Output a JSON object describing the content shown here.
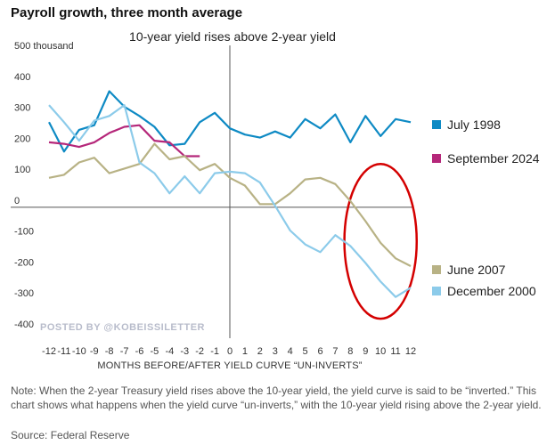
{
  "chart_data": {
    "type": "line",
    "title": "Payroll growth, three month average",
    "subtitle": "10-year yield rises above 2-year yield",
    "ylabel": "500 thousand",
    "xlabel": "MONTHS BEFORE/AFTER YIELD CURVE “UN-INVERTS”",
    "ylim": [
      -400,
      500
    ],
    "xlim": [
      -12,
      12
    ],
    "yticks": [
      500,
      400,
      300,
      200,
      100,
      0,
      -100,
      -200,
      -300,
      -400
    ],
    "ytick_labels": [
      "500 thousand",
      "400",
      "300",
      "200",
      "100",
      "0",
      "-100",
      "-200",
      "-300",
      "-400"
    ],
    "xticks": [
      -12,
      -11,
      -10,
      -9,
      -8,
      -7,
      -6,
      -5,
      -4,
      -3,
      -2,
      -1,
      0,
      1,
      2,
      3,
      4,
      5,
      6,
      7,
      8,
      9,
      10,
      11,
      12
    ],
    "grid": false,
    "legend_placement": "right",
    "series": [
      {
        "name": "July 1998",
        "color": "#0e8ac4",
        "x": [
          -12,
          -11,
          -10,
          -9,
          -8,
          -7,
          -6,
          -5,
          -4,
          -3,
          -2,
          -1,
          0,
          1,
          2,
          3,
          4,
          5,
          6,
          7,
          8,
          9,
          10,
          11,
          12
        ],
        "y": [
          275,
          180,
          250,
          265,
          375,
          325,
          295,
          260,
          200,
          205,
          275,
          305,
          255,
          235,
          225,
          245,
          225,
          285,
          255,
          300,
          210,
          295,
          230,
          285,
          275
        ]
      },
      {
        "name": "September 2024",
        "color": "#b5277a",
        "x": [
          -12,
          -11,
          -10,
          -9,
          -8,
          -7,
          -6,
          -5,
          -4,
          -3,
          -2
        ],
        "y": [
          210,
          205,
          195,
          210,
          240,
          260,
          265,
          215,
          210,
          165,
          165
        ]
      },
      {
        "name": "June 2007",
        "color": "#b8b285",
        "x": [
          -12,
          -11,
          -10,
          -9,
          -8,
          -7,
          -6,
          -5,
          -4,
          -3,
          -2,
          -1,
          0,
          1,
          2,
          3,
          4,
          5,
          6,
          7,
          8,
          9,
          10,
          11,
          12
        ],
        "y": [
          95,
          105,
          145,
          160,
          110,
          125,
          140,
          205,
          155,
          165,
          120,
          140,
          95,
          70,
          10,
          10,
          45,
          90,
          95,
          75,
          20,
          -45,
          -115,
          -165,
          -190
        ]
      },
      {
        "name": "December 2000",
        "color": "#8ccbea",
        "x": [
          -12,
          -11,
          -10,
          -9,
          -8,
          -7,
          -6,
          -5,
          -4,
          -3,
          -2,
          -1,
          0,
          1,
          2,
          3,
          4,
          5,
          6,
          7,
          8,
          9,
          10,
          11,
          12
        ],
        "y": [
          330,
          275,
          215,
          280,
          295,
          330,
          145,
          110,
          45,
          100,
          45,
          110,
          115,
          110,
          80,
          5,
          -75,
          -120,
          -145,
          -90,
          -125,
          -180,
          -240,
          -290,
          -260
        ]
      }
    ],
    "annotations": [
      {
        "type": "ellipse",
        "color": "#d40000",
        "center_x": 10,
        "center_y": -110,
        "radius_x_months": 2.4,
        "radius_y_units": 250
      }
    ]
  },
  "watermark": "POSTED BY @KOBEISSILETTER",
  "note": "Note: When the 2-year Treasury yield rises above the 10-year yield, the yield curve is said to be “inverted.” This chart shows what happens when the yield curve “un-inverts,” with the 10-year yield rising above the 2-year yield.",
  "source": "Source: Federal Reserve"
}
